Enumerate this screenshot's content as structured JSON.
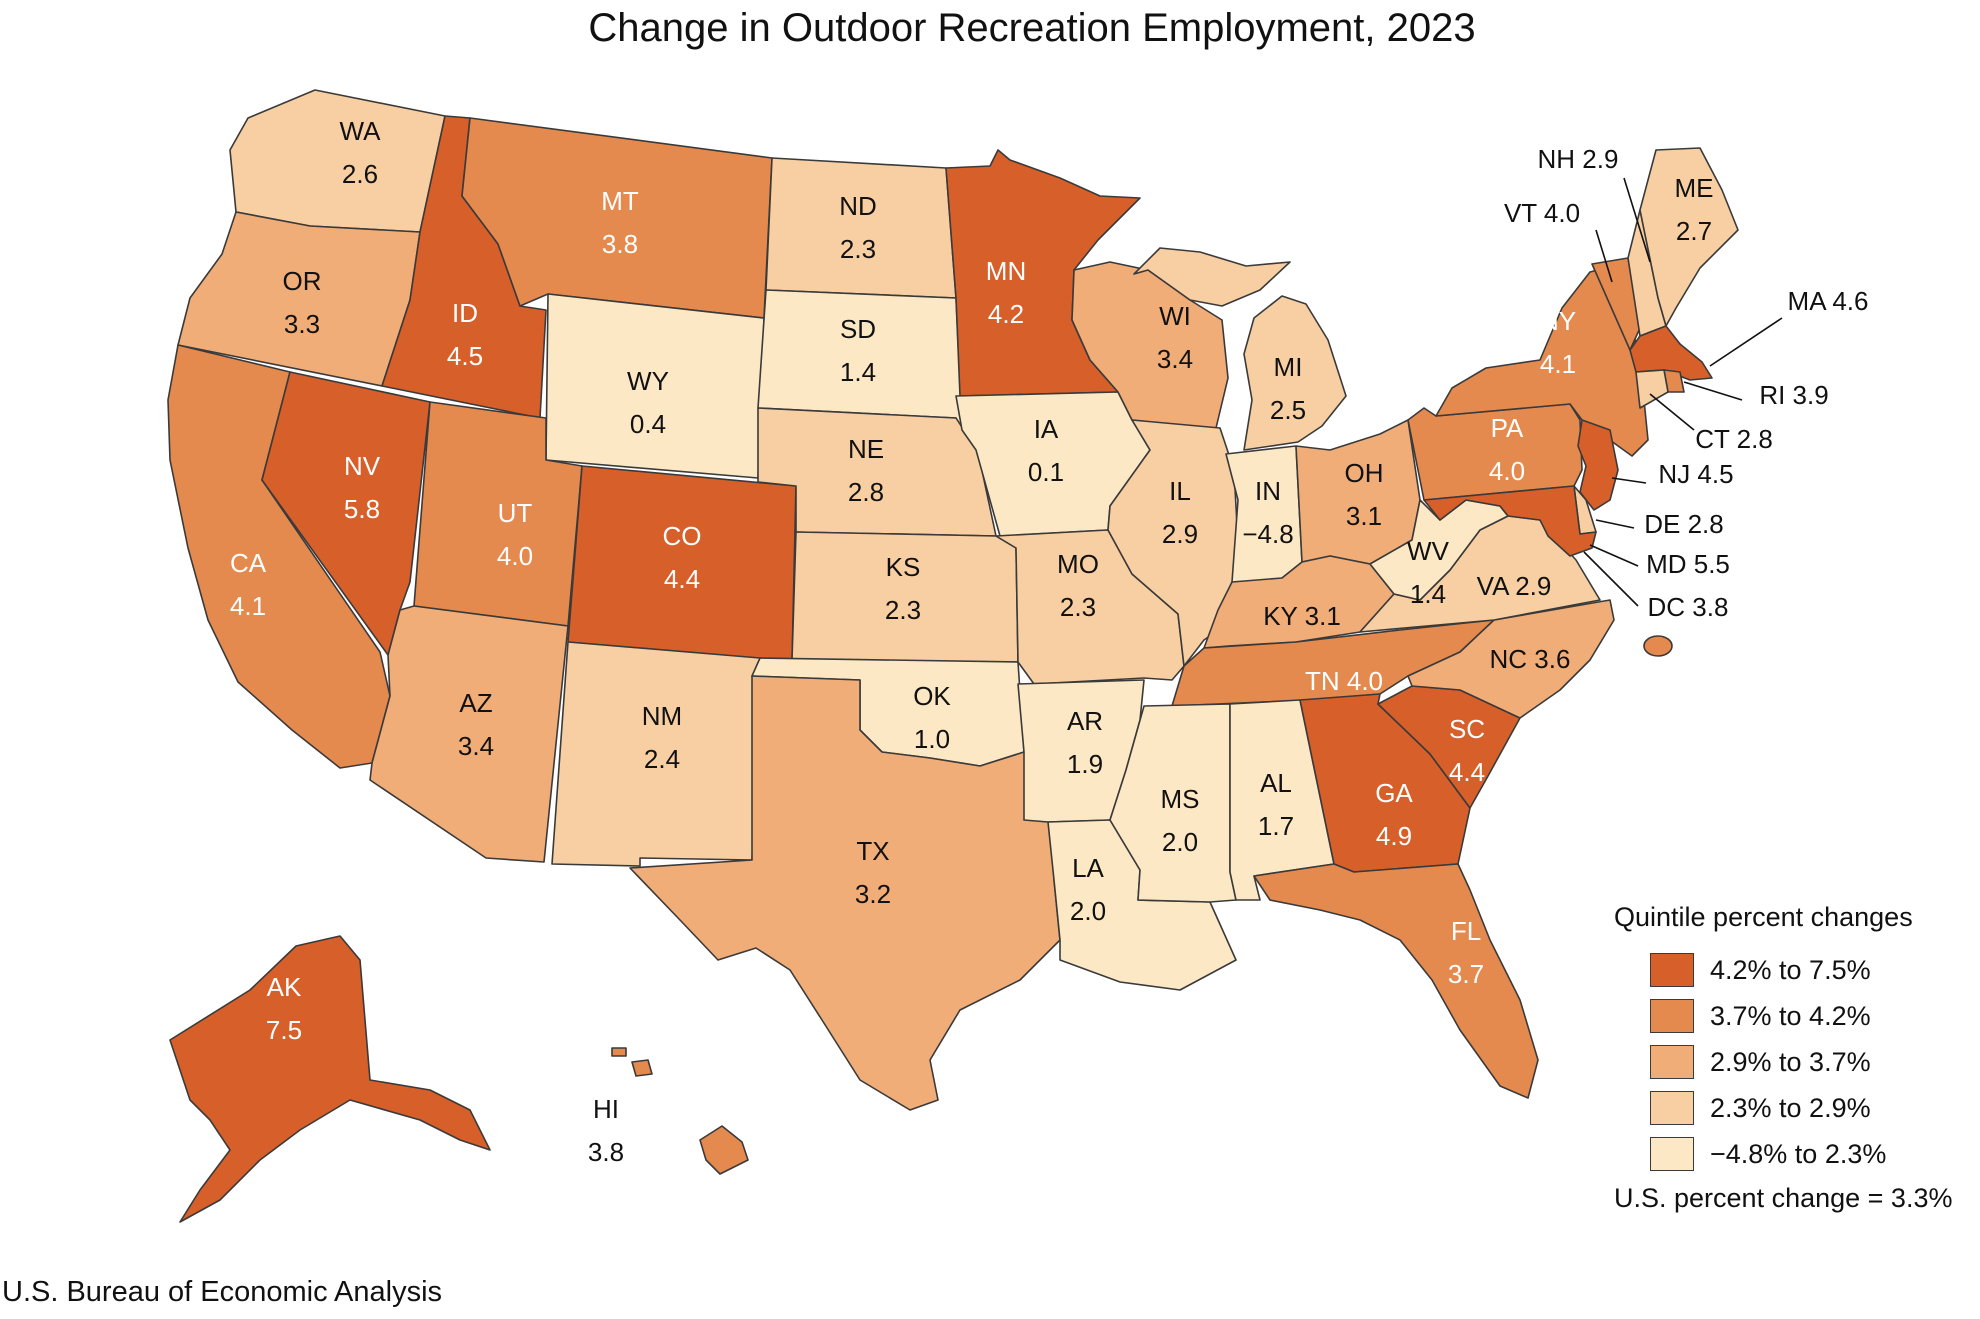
{
  "title": "Change in Outdoor Recreation Employment, 2023",
  "source": "U.S. Bureau of Economic Analysis",
  "legend": {
    "title": "Quintile percent changes",
    "bins": [
      {
        "label": "4.2% to 7.5%",
        "color": "#d75f2a"
      },
      {
        "label": "3.7% to 4.2%",
        "color": "#e58a4f"
      },
      {
        "label": "2.9% to 3.7%",
        "color": "#f0ad78"
      },
      {
        "label": "2.3% to 2.9%",
        "color": "#f7cfa2"
      },
      {
        "label": "−4.8% to 2.3%",
        "color": "#fce8c5"
      }
    ],
    "us_change": "U.S. percent change = 3.3%"
  },
  "states": [
    {
      "abbr": "WA",
      "value": "2.6",
      "bin": 3
    },
    {
      "abbr": "OR",
      "value": "3.3",
      "bin": 2
    },
    {
      "abbr": "CA",
      "value": "4.1",
      "bin": 1
    },
    {
      "abbr": "ID",
      "value": "4.5",
      "bin": 0
    },
    {
      "abbr": "NV",
      "value": "5.8",
      "bin": 0
    },
    {
      "abbr": "MT",
      "value": "3.8",
      "bin": 1
    },
    {
      "abbr": "WY",
      "value": "0.4",
      "bin": 4
    },
    {
      "abbr": "UT",
      "value": "4.0",
      "bin": 1
    },
    {
      "abbr": "AZ",
      "value": "3.4",
      "bin": 2
    },
    {
      "abbr": "CO",
      "value": "4.4",
      "bin": 0
    },
    {
      "abbr": "NM",
      "value": "2.4",
      "bin": 3
    },
    {
      "abbr": "ND",
      "value": "2.3",
      "bin": 3
    },
    {
      "abbr": "SD",
      "value": "1.4",
      "bin": 4
    },
    {
      "abbr": "NE",
      "value": "2.8",
      "bin": 3
    },
    {
      "abbr": "KS",
      "value": "2.3",
      "bin": 3
    },
    {
      "abbr": "OK",
      "value": "1.0",
      "bin": 4
    },
    {
      "abbr": "TX",
      "value": "3.2",
      "bin": 2
    },
    {
      "abbr": "MN",
      "value": "4.2",
      "bin": 0
    },
    {
      "abbr": "IA",
      "value": "0.1",
      "bin": 4
    },
    {
      "abbr": "MO",
      "value": "2.3",
      "bin": 3
    },
    {
      "abbr": "AR",
      "value": "1.9",
      "bin": 4
    },
    {
      "abbr": "LA",
      "value": "2.0",
      "bin": 4
    },
    {
      "abbr": "WI",
      "value": "3.4",
      "bin": 2
    },
    {
      "abbr": "IL",
      "value": "2.9",
      "bin": 3
    },
    {
      "abbr": "MI",
      "value": "2.5",
      "bin": 3
    },
    {
      "abbr": "IN",
      "value": "−4.8",
      "bin": 4
    },
    {
      "abbr": "OH",
      "value": "3.1",
      "bin": 2
    },
    {
      "abbr": "KY",
      "value": "3.1",
      "bin": 2
    },
    {
      "abbr": "TN",
      "value": "4.0",
      "bin": 1
    },
    {
      "abbr": "MS",
      "value": "2.0",
      "bin": 4
    },
    {
      "abbr": "AL",
      "value": "1.7",
      "bin": 4
    },
    {
      "abbr": "GA",
      "value": "4.9",
      "bin": 0
    },
    {
      "abbr": "FL",
      "value": "3.7",
      "bin": 1
    },
    {
      "abbr": "SC",
      "value": "4.4",
      "bin": 0
    },
    {
      "abbr": "NC",
      "value": "3.6",
      "bin": 2
    },
    {
      "abbr": "VA",
      "value": "2.9",
      "bin": 3
    },
    {
      "abbr": "WV",
      "value": "1.4",
      "bin": 4
    },
    {
      "abbr": "PA",
      "value": "4.0",
      "bin": 1
    },
    {
      "abbr": "NY",
      "value": "4.1",
      "bin": 1
    },
    {
      "abbr": "NJ",
      "value": "4.5",
      "bin": 0
    },
    {
      "abbr": "DE",
      "value": "2.8",
      "bin": 3
    },
    {
      "abbr": "MD",
      "value": "5.5",
      "bin": 0
    },
    {
      "abbr": "DC",
      "value": "3.8",
      "bin": 1
    },
    {
      "abbr": "VT",
      "value": "4.0",
      "bin": 1
    },
    {
      "abbr": "NH",
      "value": "2.9",
      "bin": 3
    },
    {
      "abbr": "ME",
      "value": "2.7",
      "bin": 3
    },
    {
      "abbr": "MA",
      "value": "4.6",
      "bin": 0
    },
    {
      "abbr": "RI",
      "value": "3.9",
      "bin": 1
    },
    {
      "abbr": "CT",
      "value": "2.8",
      "bin": 3
    },
    {
      "abbr": "AK",
      "value": "7.5",
      "bin": 0
    },
    {
      "abbr": "HI",
      "value": "3.8",
      "bin": 1
    }
  ]
}
